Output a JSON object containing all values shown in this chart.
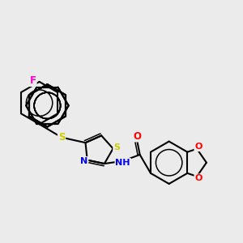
{
  "bg_color": "#ebebeb",
  "bond_color": "#000000",
  "bond_width": 1.5,
  "atom_colors": {
    "F": "#ff00cc",
    "S": "#cccc00",
    "N": "#0000ee",
    "O": "#ff0000",
    "C": "#000000"
  },
  "font_size": 8.5
}
